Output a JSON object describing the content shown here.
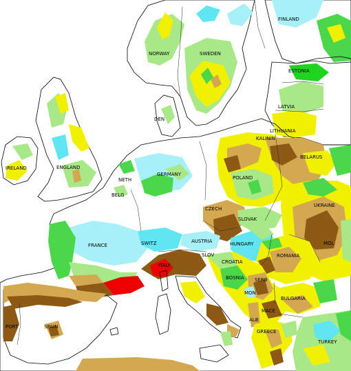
{
  "map": {
    "colors": {
      "sea": "#ffffff",
      "cyan": "#5fe6f2",
      "light_cyan": "#a8f0f7",
      "dark_green": "#1fd41f",
      "green": "#4ad84a",
      "light_green": "#a8e888",
      "yellow": "#f0f000",
      "tan": "#d4a850",
      "brown": "#8c5a14",
      "red": "#ee0000"
    },
    "labels": {
      "finland": "FINLAND",
      "norway": "NORWAY",
      "sweden": "SWEDEN",
      "estonia": "ESTONIA",
      "latvia": "LATVIA",
      "lithuania": "LITHUANIA",
      "kaliningrad": "KALININ",
      "belarus": "BELARUS",
      "den": "DEN",
      "ireland": "IRELAND",
      "england": "ENGLAND",
      "neth": "NETH",
      "germany": "GERMANY",
      "belg": "BELG",
      "poland": "POLAND",
      "ukraine": "UKRAINE",
      "czech": "CZECH",
      "slovak": "SLOVAK",
      "france": "FRANCE",
      "switz": "SWITZ",
      "austria": "AUSTRIA",
      "hungary": "HUNGARY",
      "mol": "MOL",
      "romania": "ROMANIA",
      "slov": "SLOV",
      "croatia": "CROATIA",
      "italy": "ITALY",
      "bosnia": "BOSNIA",
      "serb": "SERB",
      "mon": "MON",
      "bulgaria": "BULGARIA",
      "mace": "MACE",
      "alb": "ALB",
      "greece": "GREECE",
      "turkey": "TURKEY",
      "portugal": "PORT",
      "spain": "SPAIN"
    }
  }
}
